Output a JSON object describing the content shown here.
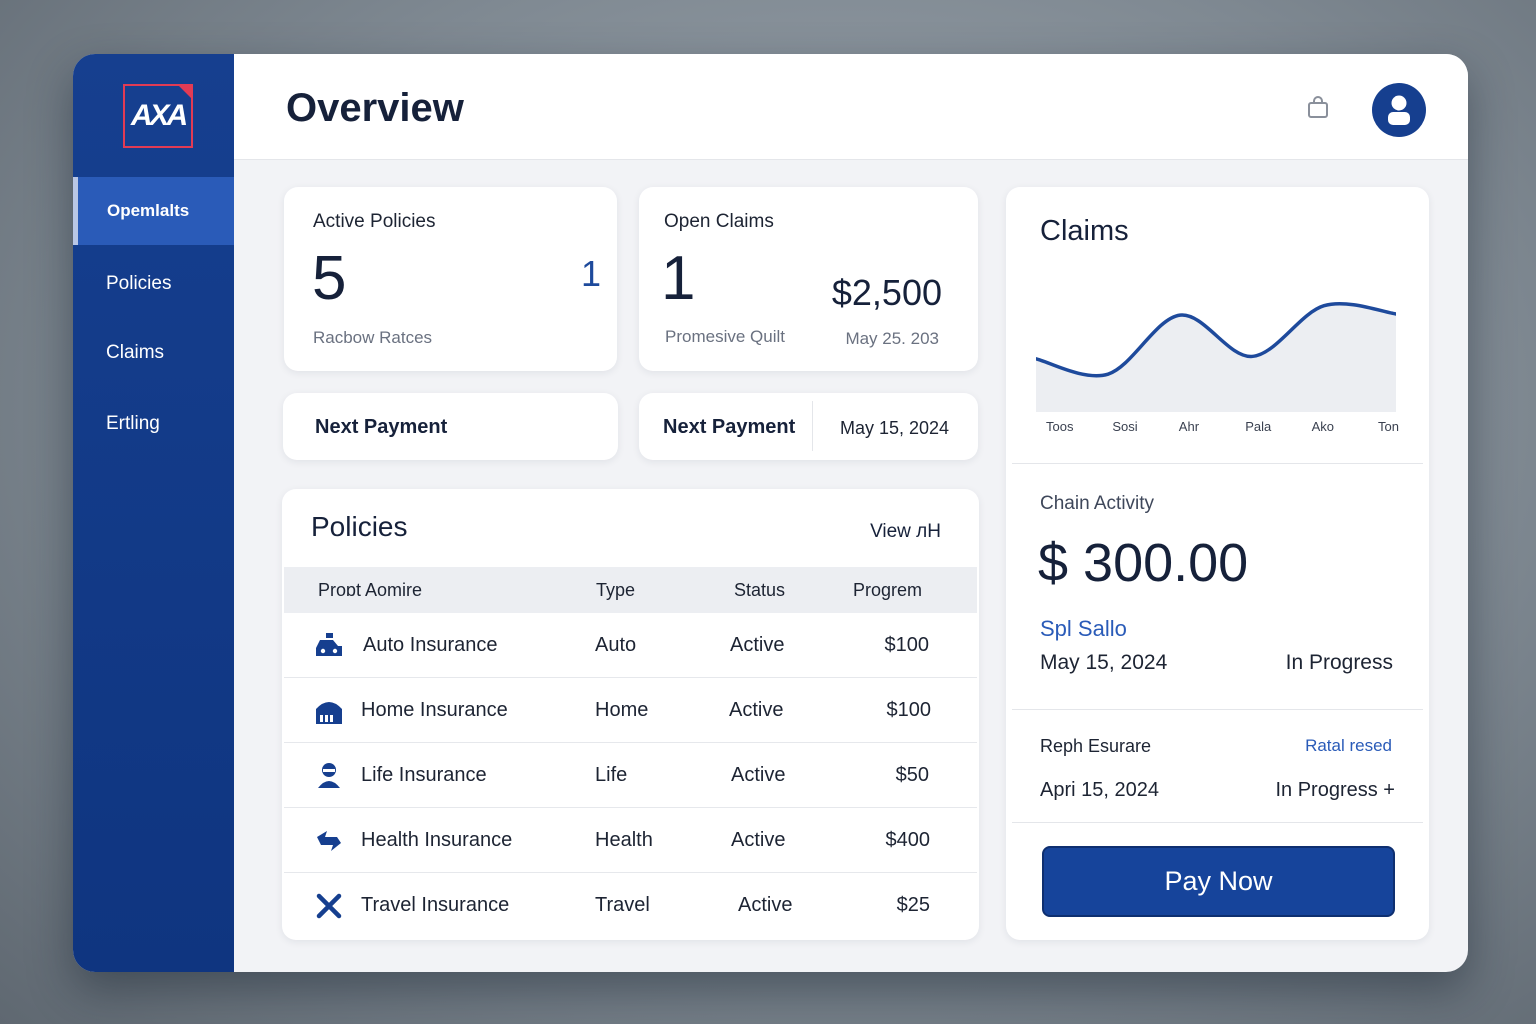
{
  "sidebar": {
    "logo_text": "AXA",
    "items": [
      {
        "label": "Opemlalts"
      },
      {
        "label": "Policies"
      },
      {
        "label": "Claims"
      },
      {
        "label": "Ertling"
      }
    ]
  },
  "header": {
    "title": "Overview"
  },
  "cards": {
    "active_policies": {
      "title": "Active Policies",
      "count": "5",
      "side_number": "1",
      "subtitle": "Racbow Ratces"
    },
    "open_claims": {
      "title": "Open Claims",
      "count": "1",
      "amount": "$2,500",
      "subtitle": "Promesive Quilt",
      "date": "May 25. 203"
    },
    "next_payment_left": {
      "label": "Next Payment"
    },
    "next_payment_right": {
      "label": "Next Payment",
      "date": "May 15, 2024"
    }
  },
  "policies": {
    "title": "Policies",
    "view_all": "View лН",
    "columns": [
      "Proɒt Aomire",
      "Type",
      "Status",
      "Progrem"
    ],
    "rows": [
      {
        "icon": "car-icon",
        "name": "Auto Insurance",
        "type": "Auto",
        "status": "Active",
        "amount": "$100"
      },
      {
        "icon": "home-icon",
        "name": "Home Insurance",
        "type": "Home",
        "status": "Active",
        "amount": "$100"
      },
      {
        "icon": "person-icon",
        "name": "Life Insurance",
        "type": "Life",
        "status": "Active",
        "amount": "$50"
      },
      {
        "icon": "health-icon",
        "name": "Health Insurance",
        "type": "Health",
        "status": "Active",
        "amount": "$400"
      },
      {
        "icon": "travel-icon",
        "name": "Travel Insurance",
        "type": "Travel",
        "status": "Active",
        "amount": "$25"
      }
    ]
  },
  "claims_panel": {
    "title": "Claims",
    "chart_data": {
      "type": "area",
      "categories": [
        "Toos",
        "Sosi",
        "Ahr",
        "Pala",
        "Ako",
        "Ton"
      ],
      "values": [
        40,
        27,
        77,
        42,
        85,
        78
      ],
      "title": "",
      "xlabel": "",
      "ylabel": "",
      "grid": false,
      "color": "#1e4a9c"
    },
    "activity": {
      "title": "Chain Activity",
      "amount": "$ 300.00",
      "subtitle": "Spl Sallo",
      "date": "May 15, 2024",
      "status": "In Progress"
    },
    "secondary": {
      "name": "Reph Esurare",
      "link": "Ratal resed",
      "date": "Apri 15, 2024",
      "status": "In Progress +"
    },
    "pay_button": "Pay Now"
  },
  "colors": {
    "brand": "#163f8f",
    "accent": "#2a5bb8",
    "logo_red": "#e23b54"
  }
}
